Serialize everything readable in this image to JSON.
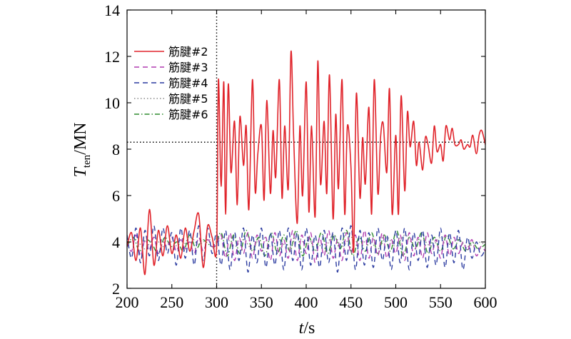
{
  "chart_data": {
    "type": "line",
    "xlabel": {
      "italic": "t",
      "rest": "/s"
    },
    "ylabel": {
      "italic": "T",
      "sub": "ten",
      "rest": "/MN"
    },
    "xlim": [
      200,
      600
    ],
    "ylim": [
      2,
      14
    ],
    "x_ticks": [
      200,
      250,
      300,
      350,
      400,
      450,
      500,
      550,
      600
    ],
    "y_ticks": [
      2,
      4,
      6,
      8,
      10,
      12,
      14
    ],
    "grid": false,
    "legend_position": "top-left",
    "reference_lines": [
      {
        "orientation": "vertical",
        "value": 300,
        "style": "dotted"
      },
      {
        "orientation": "horizontal",
        "value": 8.3,
        "style": "dotted"
      }
    ],
    "series": [
      {
        "name": "筋腱#2",
        "color": "#e0242b",
        "dash": "solid",
        "x": [
          200,
          205,
          210,
          215,
          220,
          225,
          230,
          235,
          240,
          245,
          250,
          255,
          260,
          265,
          270,
          275,
          280,
          285,
          290,
          295,
          300,
          302,
          305,
          308,
          310,
          313,
          316,
          320,
          323,
          326,
          330,
          333,
          336,
          340,
          343,
          346,
          350,
          353,
          356,
          360,
          363,
          366,
          370,
          373,
          376,
          380,
          383,
          386,
          390,
          393,
          396,
          400,
          403,
          406,
          410,
          413,
          416,
          420,
          423,
          426,
          430,
          433,
          436,
          440,
          443,
          446,
          450,
          453,
          456,
          460,
          463,
          466,
          470,
          473,
          476,
          480,
          483,
          486,
          490,
          493,
          496,
          500,
          503,
          506,
          510,
          513,
          516,
          520,
          523,
          526,
          530,
          533,
          536,
          540,
          543,
          546,
          550,
          553,
          556,
          560,
          563,
          566,
          570,
          573,
          576,
          580,
          583,
          586,
          590,
          593,
          596,
          600
        ],
        "values": [
          3.8,
          4.4,
          3.2,
          4.6,
          2.6,
          5.4,
          3.0,
          4.5,
          3.4,
          4.7,
          3.5,
          4.3,
          3.3,
          4.6,
          3.6,
          4.5,
          5.2,
          2.9,
          4.7,
          4.2,
          3.8,
          11.0,
          6.4,
          10.9,
          5.2,
          10.8,
          7.0,
          9.2,
          5.6,
          9.4,
          7.3,
          9.0,
          5.4,
          11.0,
          6.2,
          7.8,
          9.0,
          5.8,
          10.1,
          6.1,
          8.8,
          6.8,
          11.0,
          5.9,
          9.0,
          6.3,
          12.2,
          8.5,
          4.8,
          9.0,
          6.0,
          10.9,
          5.3,
          9.0,
          5.1,
          11.8,
          6.5,
          9.2,
          6.1,
          11.2,
          5.0,
          9.5,
          6.3,
          11.0,
          5.2,
          9.0,
          7.2,
          3.6,
          10.4,
          5.9,
          8.5,
          6.5,
          9.8,
          5.2,
          11.0,
          6.1,
          8.5,
          9.1,
          7.0,
          10.6,
          5.2,
          8.6,
          5.2,
          10.3,
          6.2,
          9.6,
          8.1,
          9.2,
          7.3,
          8.3,
          7.1,
          8.5,
          8.2,
          7.4,
          9.0,
          7.9,
          8.2,
          7.5,
          9.0,
          8.4,
          8.9,
          8.2,
          8.2,
          8.4,
          8.0,
          8.2,
          8.1,
          8.6,
          7.8,
          8.6,
          8.8,
          8.2
        ]
      },
      {
        "name": "筋腱#3",
        "color": "#b03cb0",
        "dash": "dashed",
        "x": [
          200,
          205,
          210,
          215,
          220,
          225,
          230,
          235,
          240,
          245,
          250,
          255,
          260,
          265,
          270,
          275,
          280,
          285,
          290,
          295,
          300,
          305,
          310,
          315,
          320,
          325,
          330,
          335,
          340,
          345,
          350,
          355,
          360,
          365,
          370,
          375,
          380,
          385,
          390,
          395,
          400,
          405,
          410,
          415,
          420,
          425,
          430,
          435,
          440,
          445,
          450,
          455,
          460,
          465,
          470,
          475,
          480,
          485,
          490,
          495,
          500,
          505,
          510,
          515,
          520,
          525,
          530,
          535,
          540,
          545,
          550,
          555,
          560,
          565,
          570,
          575,
          580,
          585,
          590,
          595,
          600
        ],
        "values": [
          4.0,
          3.6,
          4.3,
          3.4,
          4.1,
          3.7,
          4.2,
          3.5,
          4.0,
          3.8,
          4.2,
          3.6,
          4.1,
          3.7,
          4.0,
          3.5,
          4.2,
          3.6,
          4.1,
          3.8,
          3.9,
          4.3,
          3.3,
          4.4,
          3.2,
          4.2,
          3.5,
          4.4,
          3.3,
          4.3,
          3.6,
          4.2,
          3.2,
          4.4,
          3.4,
          4.1,
          3.3,
          4.5,
          3.2,
          4.3,
          3.5,
          4.4,
          3.1,
          4.2,
          3.4,
          4.5,
          3.3,
          4.1,
          3.2,
          4.4,
          3.5,
          4.3,
          3.2,
          4.5,
          3.3,
          4.2,
          3.4,
          4.4,
          3.3,
          4.1,
          3.5,
          4.3,
          3.2,
          4.4,
          3.4,
          4.2,
          3.3,
          4.4,
          3.5,
          4.1,
          3.3,
          4.3,
          3.4,
          4.2,
          3.5,
          4.0,
          3.6,
          4.1,
          3.4,
          3.8,
          3.6
        ]
      },
      {
        "name": "筋腱#4",
        "color": "#2b3ba0",
        "dash": "dashed",
        "x": [
          200,
          205,
          210,
          215,
          220,
          225,
          230,
          235,
          240,
          245,
          250,
          255,
          260,
          265,
          270,
          275,
          280,
          285,
          290,
          295,
          300,
          305,
          310,
          315,
          320,
          325,
          330,
          335,
          340,
          345,
          350,
          355,
          360,
          365,
          370,
          375,
          380,
          385,
          390,
          395,
          400,
          405,
          410,
          415,
          420,
          425,
          430,
          435,
          440,
          445,
          450,
          455,
          460,
          465,
          470,
          475,
          480,
          485,
          490,
          495,
          500,
          505,
          510,
          515,
          520,
          525,
          530,
          535,
          540,
          545,
          550,
          555,
          560,
          565,
          570,
          575,
          580,
          585,
          590,
          595,
          600
        ],
        "values": [
          4.3,
          3.3,
          4.6,
          3.1,
          4.5,
          3.4,
          4.7,
          3.2,
          4.6,
          3.5,
          4.4,
          3.0,
          4.6,
          3.3,
          4.5,
          3.0,
          4.7,
          3.2,
          4.6,
          3.5,
          4.4,
          3.0,
          4.5,
          2.8,
          4.4,
          3.2,
          4.6,
          2.7,
          4.3,
          3.1,
          4.6,
          2.9,
          4.4,
          3.0,
          4.5,
          2.8,
          4.6,
          3.2,
          4.4,
          2.8,
          4.6,
          3.0,
          4.3,
          2.9,
          4.5,
          3.1,
          4.4,
          2.7,
          4.6,
          3.2,
          4.7,
          2.8,
          4.5,
          3.0,
          4.4,
          2.9,
          4.6,
          3.2,
          4.3,
          2.8,
          4.5,
          3.1,
          4.6,
          2.8,
          4.4,
          3.2,
          4.5,
          2.9,
          4.3,
          3.0,
          4.6,
          2.9,
          4.4,
          3.1,
          4.5,
          2.8,
          4.2,
          3.3,
          4.0,
          3.4,
          3.7
        ]
      },
      {
        "name": "筋腱#5",
        "color": "#8a8a8a",
        "dash": "dotted",
        "x": [
          200,
          210,
          220,
          230,
          240,
          250,
          260,
          270,
          280,
          290,
          300,
          310,
          320,
          330,
          340,
          350,
          360,
          370,
          380,
          390,
          400,
          410,
          420,
          430,
          440,
          450,
          460,
          470,
          480,
          490,
          500,
          510,
          520,
          530,
          540,
          550,
          560,
          570,
          580,
          590,
          600
        ],
        "values": [
          3.9,
          4.1,
          3.7,
          4.2,
          3.8,
          4.0,
          3.7,
          4.2,
          3.9,
          4.1,
          4.0,
          4.2,
          3.8,
          4.1,
          3.7,
          4.3,
          3.8,
          4.1,
          3.7,
          4.2,
          3.9,
          4.1,
          3.7,
          4.3,
          3.8,
          4.2,
          3.9,
          4.1,
          3.7,
          4.2,
          3.8,
          4.3,
          3.9,
          4.1,
          3.8,
          4.2,
          3.9,
          4.1,
          3.8,
          4.0,
          3.9
        ]
      },
      {
        "name": "筋腱#6",
        "color": "#2e8b2e",
        "dash": "dashdot",
        "x": [
          200,
          207,
          214,
          221,
          228,
          235,
          242,
          249,
          256,
          263,
          270,
          277,
          284,
          291,
          298,
          305,
          312,
          319,
          326,
          333,
          340,
          347,
          354,
          361,
          368,
          375,
          382,
          389,
          396,
          403,
          410,
          417,
          424,
          431,
          438,
          445,
          452,
          459,
          466,
          473,
          480,
          487,
          494,
          501,
          508,
          515,
          522,
          529,
          536,
          543,
          550,
          557,
          564,
          571,
          578,
          585,
          592,
          600
        ],
        "values": [
          3.8,
          4.2,
          3.6,
          4.1,
          3.9,
          3.5,
          4.2,
          3.8,
          4.0,
          3.6,
          4.3,
          3.7,
          4.1,
          3.9,
          3.8,
          4.4,
          3.4,
          4.3,
          3.5,
          4.5,
          3.6,
          4.2,
          3.4,
          4.4,
          3.5,
          4.3,
          3.6,
          4.5,
          3.4,
          4.2,
          3.6,
          4.4,
          3.5,
          4.3,
          3.7,
          4.5,
          3.4,
          4.2,
          3.6,
          4.4,
          3.5,
          4.3,
          3.6,
          4.5,
          3.4,
          4.2,
          3.7,
          4.4,
          3.5,
          4.2,
          3.6,
          4.3,
          3.7,
          4.1,
          3.6,
          4.0,
          3.7,
          3.9
        ]
      }
    ]
  }
}
